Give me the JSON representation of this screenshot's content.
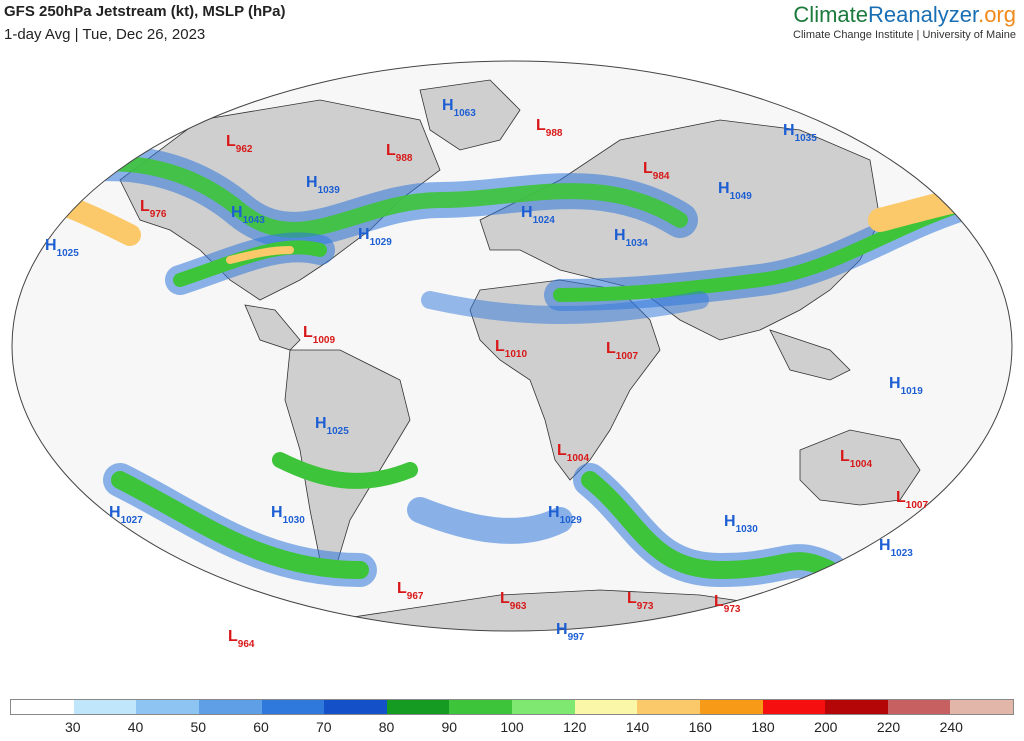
{
  "header": {
    "title": "GFS 250hPa Jetstream (kt), MSLP (hPa)",
    "subtitle": "1-day Avg | Tue, Dec 26, 2023"
  },
  "brand": {
    "part1": "Climate",
    "part2": "Reanalyzer",
    "part3": ".org",
    "sub": "Climate Change Institute | University of Maine"
  },
  "colorbar": {
    "colors": [
      "#ffffff",
      "#bfe6fb",
      "#8ec4f2",
      "#5f9fe6",
      "#2f78dc",
      "#1450c8",
      "#159a22",
      "#3ec43a",
      "#7fe870",
      "#fbf7a8",
      "#fbc96a",
      "#f79a18",
      "#f50f0f",
      "#b40606",
      "#c76060",
      "#e3b6aa"
    ],
    "ticks": [
      "30",
      "40",
      "50",
      "60",
      "70",
      "80",
      "90",
      "100",
      "120",
      "140",
      "160",
      "180",
      "200",
      "220",
      "240"
    ]
  },
  "pressure_centers": [
    {
      "type": "H",
      "value": "1063"
    },
    {
      "type": "L",
      "value": "988"
    },
    {
      "type": "L",
      "value": "988"
    },
    {
      "type": "L",
      "value": "962"
    },
    {
      "type": "H",
      "value": "1039"
    },
    {
      "type": "H",
      "value": "1035"
    },
    {
      "type": "L",
      "value": "984"
    },
    {
      "type": "L",
      "value": "976"
    },
    {
      "type": "H",
      "value": "1043"
    },
    {
      "type": "H",
      "value": "1029"
    },
    {
      "type": "H",
      "value": "1024"
    },
    {
      "type": "H",
      "value": "1049"
    },
    {
      "type": "H",
      "value": "1034"
    },
    {
      "type": "H",
      "value": "1025"
    },
    {
      "type": "L",
      "value": "1009"
    },
    {
      "type": "L",
      "value": "1010"
    },
    {
      "type": "L",
      "value": "1007"
    },
    {
      "type": "H",
      "value": "1019"
    },
    {
      "type": "H",
      "value": "1025"
    },
    {
      "type": "L",
      "value": "1004"
    },
    {
      "type": "L",
      "value": "1004"
    },
    {
      "type": "L",
      "value": "1007"
    },
    {
      "type": "H",
      "value": "1027"
    },
    {
      "type": "H",
      "value": "1030"
    },
    {
      "type": "H",
      "value": "1029"
    },
    {
      "type": "H",
      "value": "1030"
    },
    {
      "type": "H",
      "value": "1023"
    },
    {
      "type": "L",
      "value": "967"
    },
    {
      "type": "L",
      "value": "963"
    },
    {
      "type": "L",
      "value": "973"
    },
    {
      "type": "L",
      "value": "973"
    },
    {
      "type": "H",
      "value": "997"
    },
    {
      "type": "L",
      "value": "964"
    }
  ],
  "colors": {
    "high": "#1d5fd3",
    "low": "#d81818"
  }
}
